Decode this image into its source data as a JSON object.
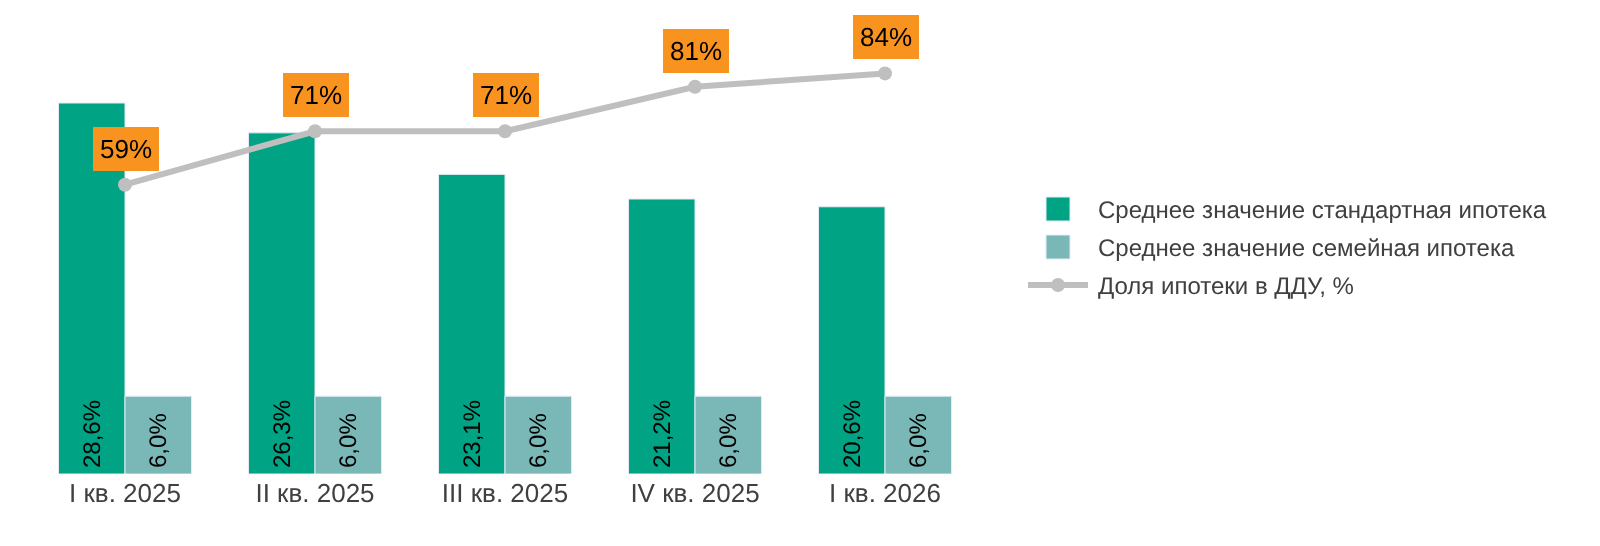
{
  "chart_data": {
    "type": "bar",
    "categories": [
      "I кв. 2025",
      "II кв. 2025",
      "III кв. 2025",
      "IV кв. 2025",
      "I кв. 2026"
    ],
    "ylim": [
      0,
      35
    ],
    "y2lim": [
      -6,
      96
    ],
    "tick_labels": "x",
    "legend": "right",
    "series": [
      {
        "name": "Среднее значение стандартная ипотека",
        "color": "#00a383",
        "values": [
          28.6,
          26.3,
          23.1,
          21.2,
          20.6
        ],
        "value_labels": [
          "28,6%",
          "26,3%",
          "23,1%",
          "21,2%",
          "20,6%"
        ]
      },
      {
        "name": "Среднее значение семейная ипотека",
        "color": "#7ab8b8",
        "values": [
          6.0,
          6.0,
          6.0,
          6.0,
          6.0
        ],
        "value_labels": [
          "6,0%",
          "6,0%",
          "6,0%",
          "6,0%",
          "6,0%"
        ]
      },
      {
        "name": "Доля ипотеки в ДДУ, %",
        "type": "line",
        "axis": "y2",
        "color": "#bfbfbf",
        "marker": "circle",
        "values": [
          59,
          71,
          71,
          81,
          84
        ],
        "value_labels": [
          "59%",
          "71%",
          "71%",
          "81%",
          "84%"
        ]
      }
    ]
  }
}
